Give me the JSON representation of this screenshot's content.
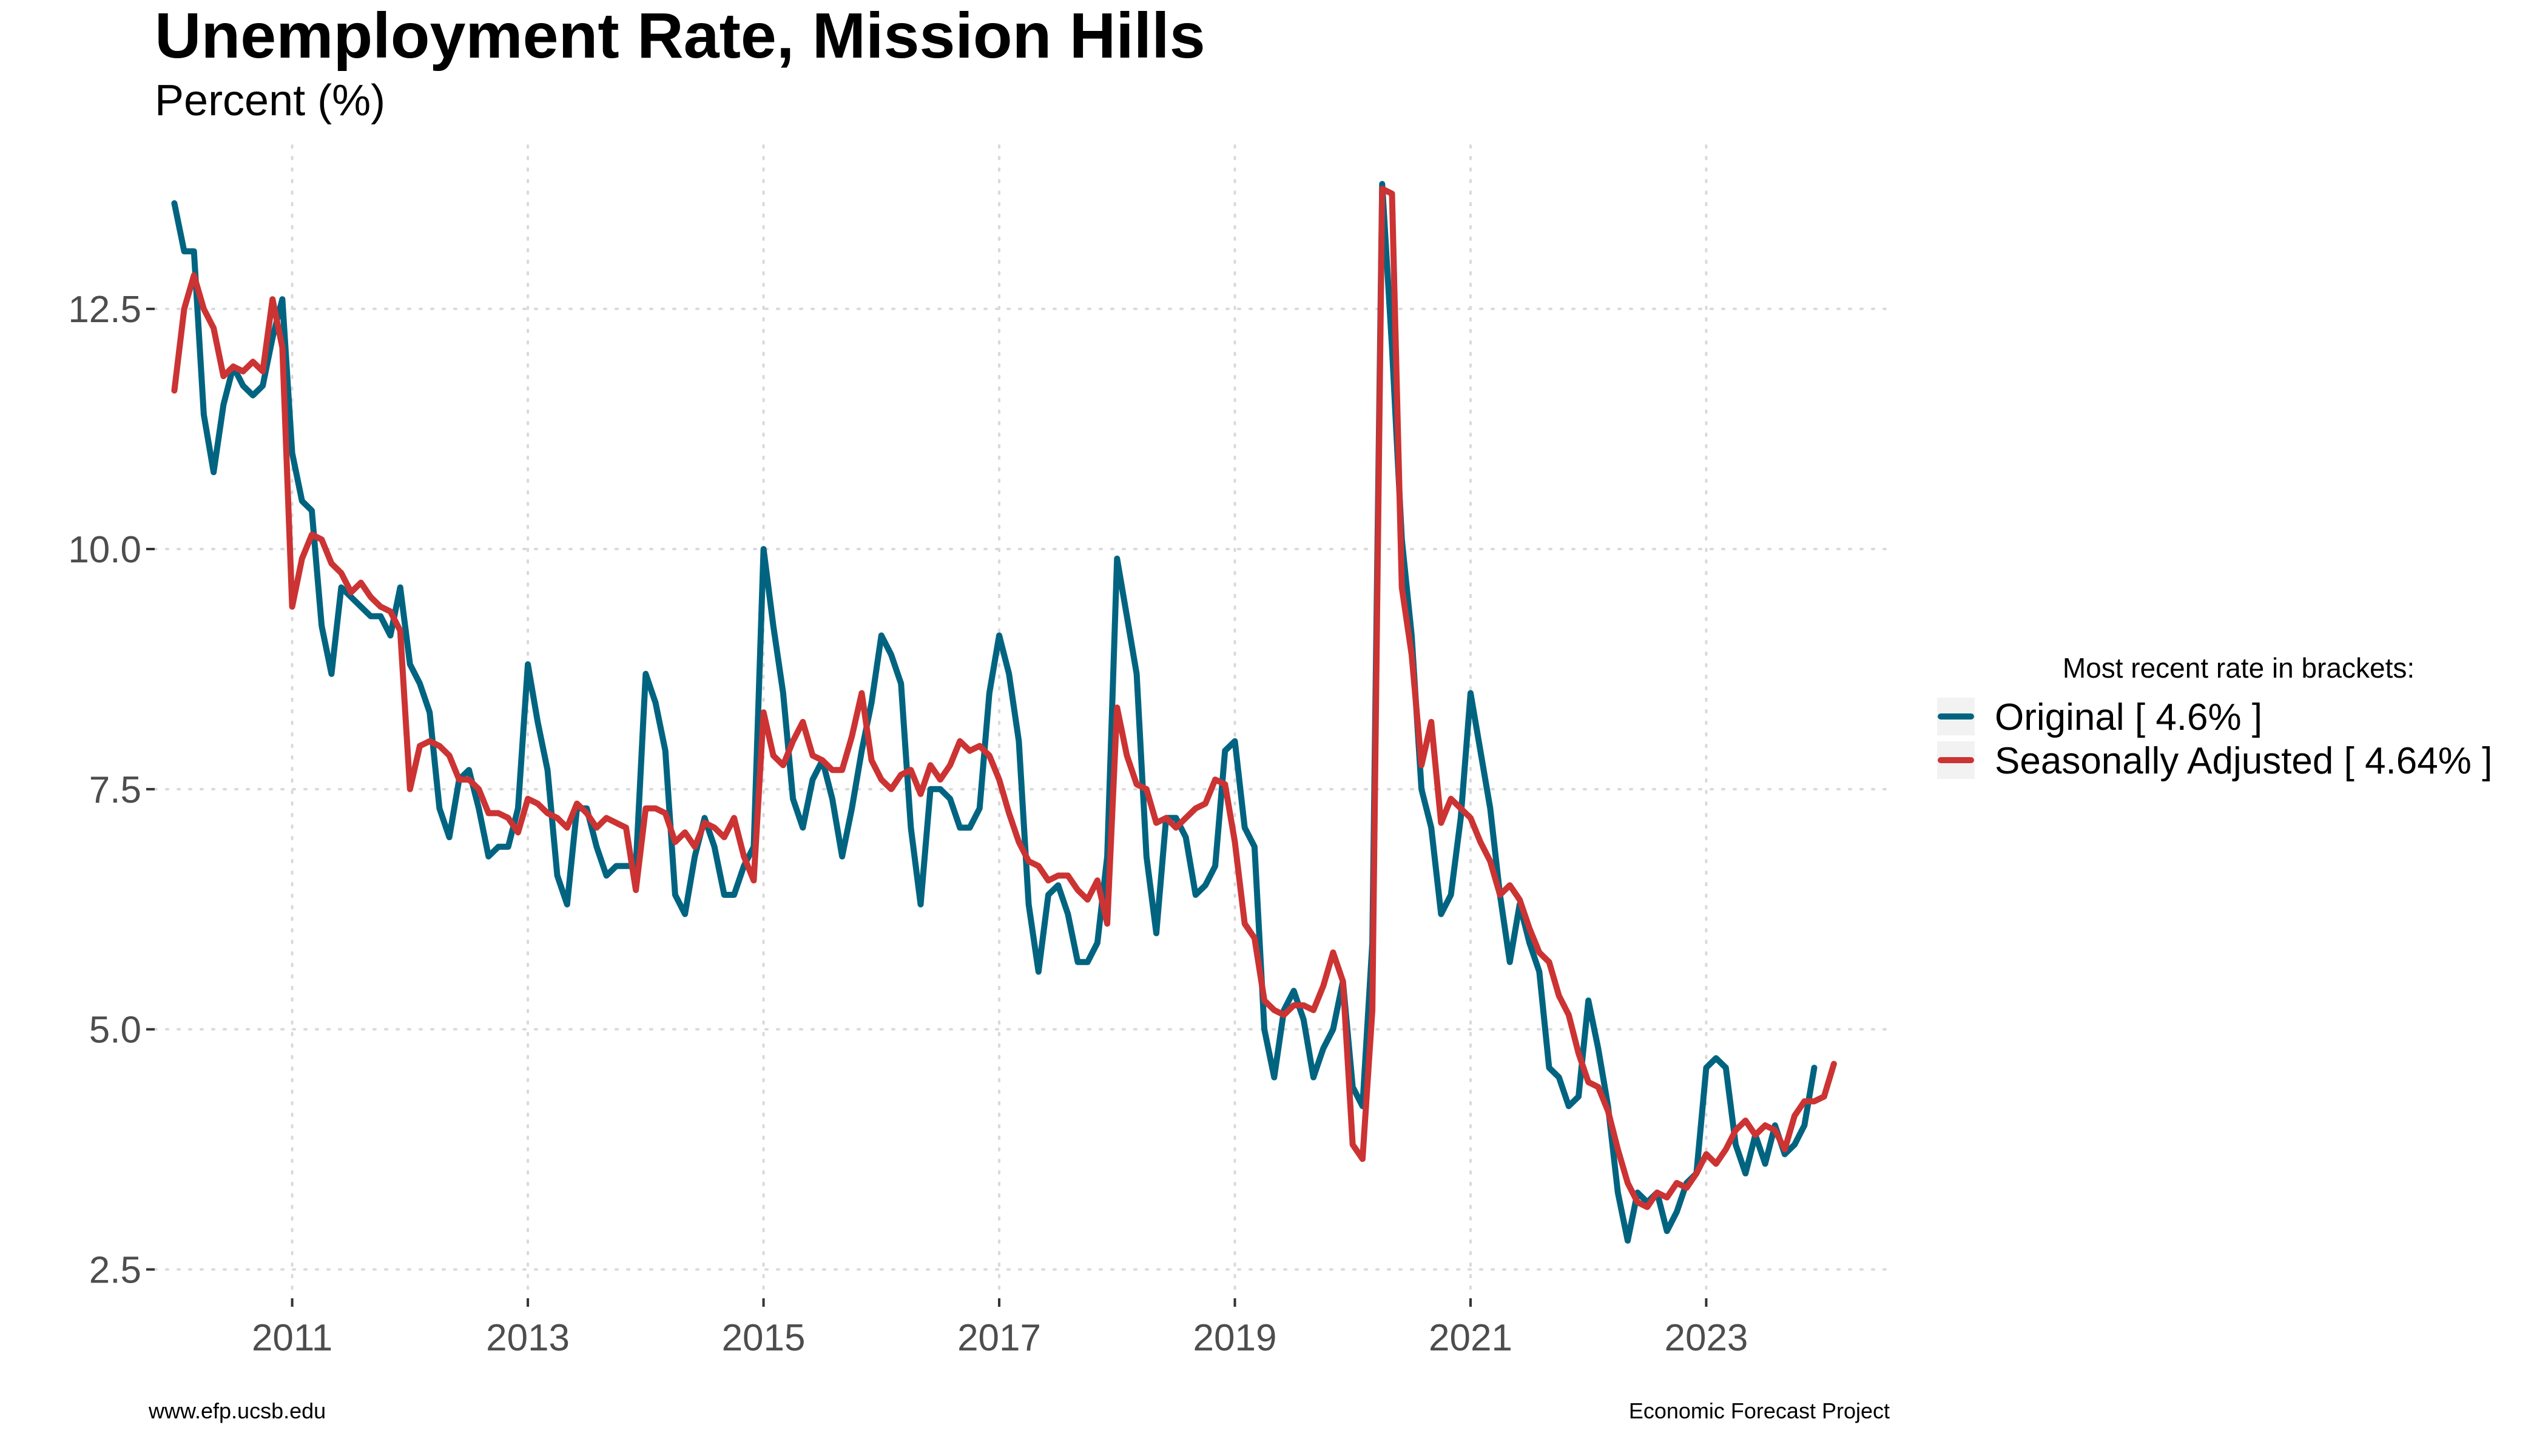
{
  "chart_data": {
    "type": "line",
    "title": "Unemployment Rate, Mission Hills",
    "subtitle": "Percent (%)",
    "xlabel": "",
    "ylabel": "",
    "ylim": [
      2.2,
      14.2
    ],
    "xlim": [
      "2009-11",
      "2024-08"
    ],
    "y_ticks": [
      "2.5",
      "5.0",
      "7.5",
      "10.0",
      "12.5"
    ],
    "x_ticks": [
      "2011",
      "2013",
      "2015",
      "2017",
      "2019",
      "2021",
      "2023"
    ],
    "grid": true,
    "legend_position": "right",
    "legend_title": "Most recent rate in brackets:",
    "start": "2010-01",
    "frequency": "monthly",
    "series": [
      {
        "name": "Original [ 4.6% ]",
        "color": "#006480",
        "values": [
          13.6,
          13.1,
          13.1,
          11.4,
          10.8,
          11.5,
          11.9,
          11.7,
          11.6,
          11.7,
          12.2,
          12.6,
          11.0,
          10.5,
          10.4,
          9.2,
          8.7,
          9.6,
          9.5,
          9.4,
          9.3,
          9.3,
          9.1,
          9.6,
          8.8,
          8.6,
          8.3,
          7.3,
          7.0,
          7.6,
          7.7,
          7.3,
          6.8,
          6.9,
          6.9,
          7.3,
          8.8,
          8.2,
          7.7,
          6.6,
          6.3,
          7.3,
          7.3,
          6.9,
          6.6,
          6.7,
          6.7,
          6.7,
          8.7,
          8.4,
          7.9,
          6.4,
          6.2,
          6.8,
          7.2,
          6.9,
          6.4,
          6.4,
          6.7,
          6.9,
          10.0,
          9.2,
          8.5,
          7.4,
          7.1,
          7.6,
          7.8,
          7.4,
          6.8,
          7.3,
          7.9,
          8.4,
          9.1,
          8.9,
          8.6,
          7.1,
          6.3,
          7.5,
          7.5,
          7.4,
          7.1,
          7.1,
          7.3,
          8.5,
          9.1,
          8.7,
          8.0,
          6.3,
          5.6,
          6.4,
          6.5,
          6.2,
          5.7,
          5.7,
          5.9,
          6.8,
          9.9,
          9.3,
          8.7,
          6.8,
          6.0,
          7.2,
          7.2,
          7.0,
          6.4,
          6.5,
          6.7,
          7.9,
          8.0,
          7.1,
          6.9,
          5.0,
          4.5,
          5.2,
          5.4,
          5.1,
          4.5,
          4.8,
          5.0,
          5.5,
          4.4,
          4.2,
          5.9,
          13.8,
          12.1,
          10.1,
          9.1,
          7.5,
          7.1,
          6.2,
          6.4,
          7.2,
          8.5,
          7.9,
          7.3,
          6.4,
          5.7,
          6.3,
          5.9,
          5.6,
          4.6,
          4.5,
          4.2,
          4.3,
          5.3,
          4.8,
          4.2,
          3.3,
          2.8,
          3.3,
          3.2,
          3.3,
          2.9,
          3.1,
          3.4,
          3.5,
          4.6,
          4.7,
          4.6,
          3.8,
          3.5,
          3.9,
          3.6,
          4.0,
          3.7,
          3.8,
          4.0,
          4.6
        ]
      },
      {
        "name": "Seasonally Adjusted [ 4.64% ]",
        "color": "#cc3333",
        "values": [
          11.65,
          12.5,
          12.85,
          12.5,
          12.3,
          11.8,
          11.9,
          11.85,
          11.95,
          11.85,
          12.6,
          12.1,
          9.4,
          9.9,
          10.15,
          10.1,
          9.85,
          9.75,
          9.55,
          9.65,
          9.5,
          9.4,
          9.35,
          9.15,
          7.5,
          7.95,
          8.0,
          7.95,
          7.85,
          7.6,
          7.6,
          7.5,
          7.25,
          7.25,
          7.2,
          7.05,
          7.4,
          7.35,
          7.25,
          7.2,
          7.1,
          7.35,
          7.25,
          7.1,
          7.2,
          7.15,
          7.1,
          6.45,
          7.3,
          7.3,
          7.25,
          6.95,
          7.05,
          6.9,
          7.15,
          7.1,
          7.0,
          7.2,
          6.8,
          6.55,
          8.3,
          7.85,
          7.75,
          8.0,
          8.2,
          7.85,
          7.8,
          7.7,
          7.7,
          8.05,
          8.5,
          7.8,
          7.6,
          7.5,
          7.65,
          7.7,
          7.45,
          7.75,
          7.6,
          7.75,
          8.0,
          7.9,
          7.95,
          7.85,
          7.6,
          7.25,
          6.95,
          6.75,
          6.7,
          6.55,
          6.6,
          6.6,
          6.45,
          6.35,
          6.55,
          6.1,
          8.35,
          7.85,
          7.55,
          7.5,
          7.15,
          7.2,
          7.1,
          7.2,
          7.3,
          7.35,
          7.6,
          7.55,
          6.95,
          6.1,
          5.95,
          5.3,
          5.2,
          5.15,
          5.25,
          5.25,
          5.2,
          5.45,
          5.8,
          5.5,
          3.8,
          3.65,
          5.2,
          13.75,
          13.7,
          9.6,
          8.9,
          7.75,
          8.2,
          7.15,
          7.4,
          7.3,
          7.2,
          6.95,
          6.75,
          6.4,
          6.5,
          6.35,
          6.05,
          5.8,
          5.7,
          5.35,
          5.15,
          4.75,
          4.45,
          4.4,
          4.15,
          3.75,
          3.4,
          3.2,
          3.15,
          3.3,
          3.25,
          3.4,
          3.35,
          3.5,
          3.7,
          3.6,
          3.75,
          3.95,
          4.05,
          3.9,
          4.0,
          3.95,
          3.75,
          4.1,
          4.25,
          4.25,
          4.3,
          4.64
        ]
      }
    ]
  },
  "footer": {
    "left": "www.efp.ucsb.edu",
    "right": "Economic Forecast Project"
  }
}
